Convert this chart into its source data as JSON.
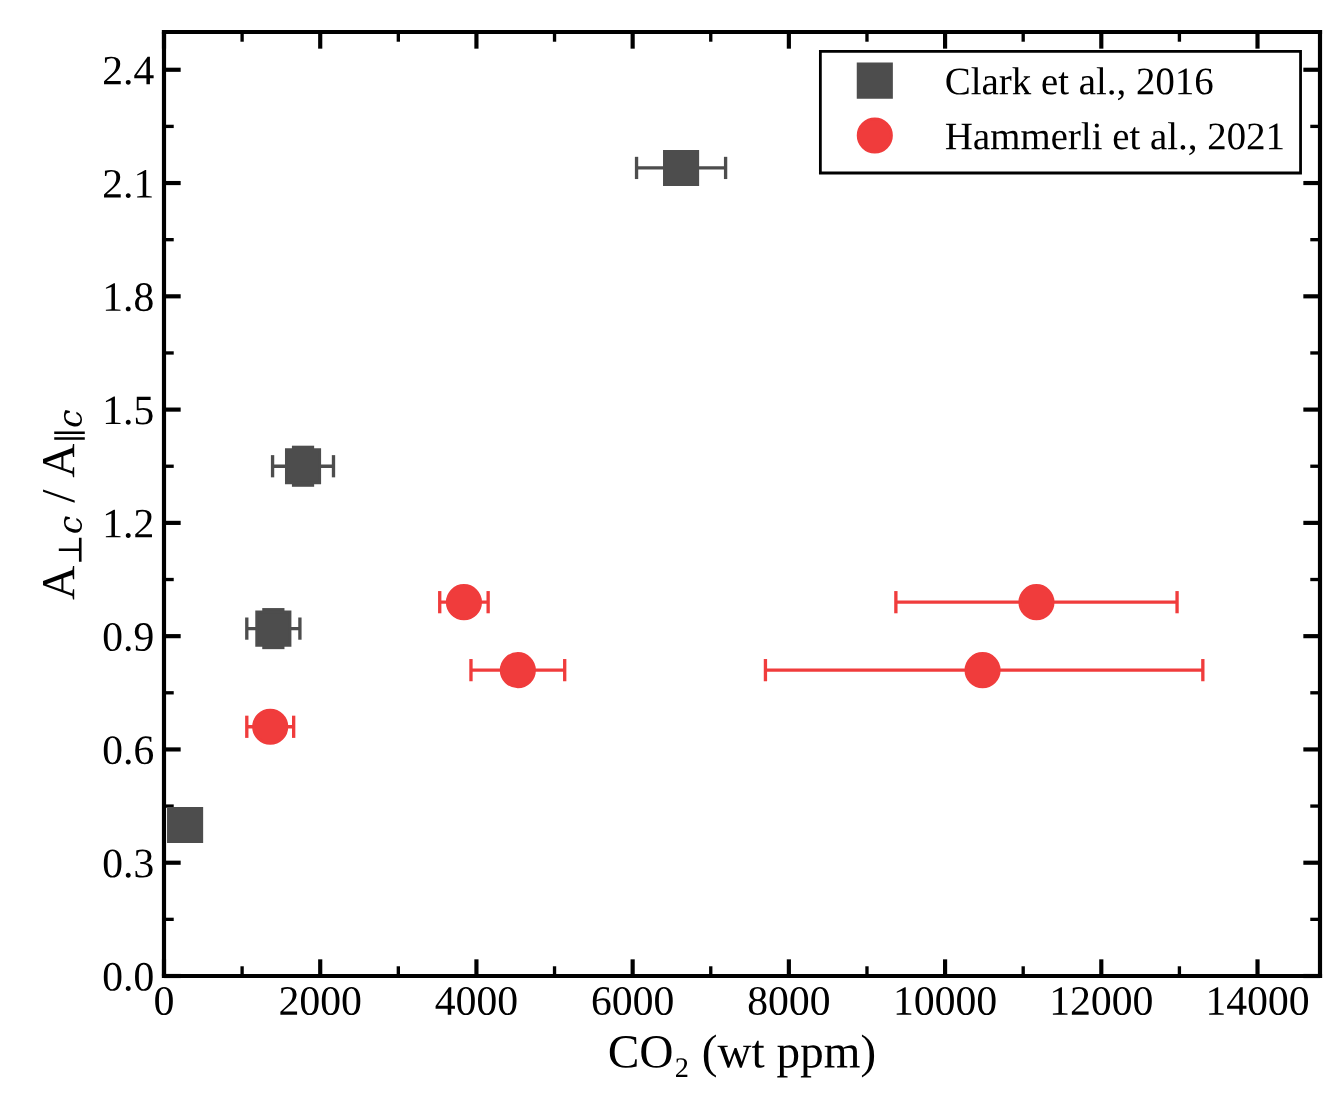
{
  "chart_data": {
    "type": "scatter",
    "xlabel": "CO₂ (wt ppm)",
    "ylabel": "A$_{⊥c}$ / A$_{∥c}$",
    "xlim": [
      0,
      14800
    ],
    "ylim": [
      0,
      2.5
    ],
    "xticks": [
      0,
      2000,
      4000,
      6000,
      8000,
      10000,
      12000,
      14000
    ],
    "yticks": [
      {
        "value": 0,
        "label": "0.0"
      },
      0.3,
      0.6,
      0.9,
      1.2,
      1.5,
      1.8,
      2.1,
      2.4
    ],
    "grid": false,
    "legend": "top right",
    "series": [
      {
        "name": "Clark et al., 2016",
        "color": "#4d4d4d",
        "marker": "square",
        "x": [
          270,
          1400,
          1780,
          6620
        ],
        "values": [
          0.4,
          0.92,
          1.35,
          2.14
        ],
        "xerrors": [
          null,
          340,
          390,
          570
        ],
        "errors": [
          null,
          0.05,
          0.05,
          null
        ]
      },
      {
        "name": "Hammerli et al., 2021",
        "color": "#f03c3c",
        "marker": "circle",
        "x": [
          1360,
          3840,
          4530,
          11170,
          10480
        ],
        "values": [
          0.66,
          0.99,
          0.81,
          0.99,
          0.81
        ],
        "xerrors": [
          300,
          310,
          600,
          1800,
          [
            7700,
            13300
          ]
        ]
      }
    ]
  }
}
